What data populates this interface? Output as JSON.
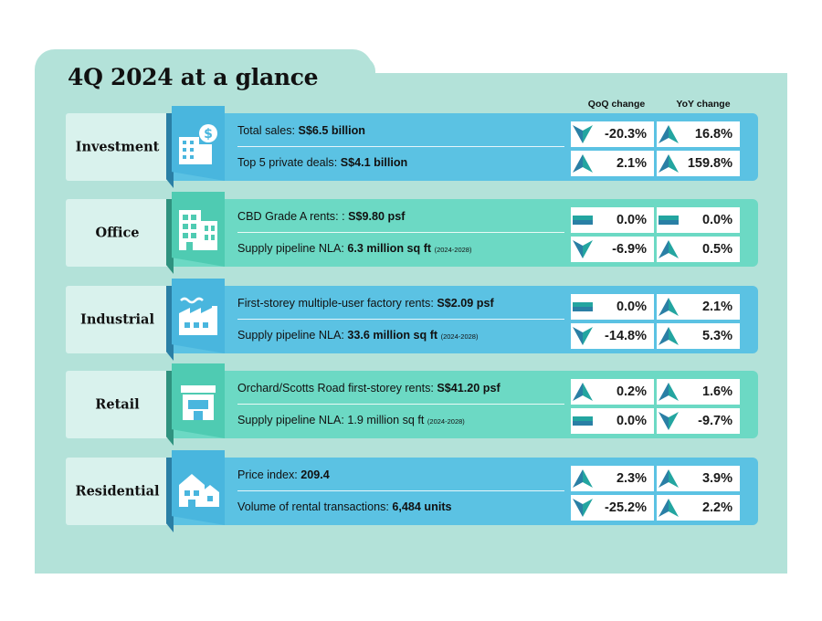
{
  "title": "4Q 2024 at a glance",
  "columns": {
    "qoq": "QoQ change",
    "yoy": "YoY change"
  },
  "colors": {
    "up": "#23a5a0",
    "down": "#23a5a0",
    "flat": "#23a5a0"
  },
  "sections": [
    {
      "label": "Investment",
      "icon": "building-dollar-icon",
      "metrics": [
        {
          "prefix": "Total sales: ",
          "value": "S$6.5 billion",
          "suffix": "",
          "qoq": "-20.3%",
          "qoq_dir": "down",
          "yoy": "16.8%",
          "yoy_dir": "up"
        },
        {
          "prefix": "Top 5 private deals: ",
          "value": "S$4.1 billion",
          "suffix": "",
          "qoq": "2.1%",
          "qoq_dir": "up",
          "yoy": "159.8%",
          "yoy_dir": "up"
        }
      ]
    },
    {
      "label": "Office",
      "icon": "office-buildings-icon",
      "metrics": [
        {
          "prefix": "CBD Grade A rents: : ",
          "value": "S$9.80 psf",
          "suffix": "",
          "qoq": "0.0%",
          "qoq_dir": "flat",
          "yoy": "0.0%",
          "yoy_dir": "flat"
        },
        {
          "prefix": "Supply pipeline NLA: ",
          "value": "6.3 million sq ft",
          "suffix": "(2024-2028)",
          "qoq": "-6.9%",
          "qoq_dir": "down",
          "yoy": "0.5%",
          "yoy_dir": "up"
        }
      ]
    },
    {
      "label": "Industrial",
      "icon": "factory-icon",
      "metrics": [
        {
          "prefix": "First-storey multiple-user factory rents: ",
          "value": "S$2.09 psf",
          "suffix": "",
          "qoq": "0.0%",
          "qoq_dir": "flat",
          "yoy": "2.1%",
          "yoy_dir": "up"
        },
        {
          "prefix": "Supply pipeline NLA: ",
          "value": "33.6 million sq ft",
          "suffix": "(2024-2028)",
          "qoq": "-14.8%",
          "qoq_dir": "down",
          "yoy": "5.3%",
          "yoy_dir": "up"
        }
      ]
    },
    {
      "label": "Retail",
      "icon": "storefront-icon",
      "metrics": [
        {
          "prefix": "Orchard/Scotts Road first-storey rents: ",
          "value": "S$41.20 psf",
          "suffix": "",
          "qoq": "0.2%",
          "qoq_dir": "up",
          "yoy": "1.6%",
          "yoy_dir": "up"
        },
        {
          "prefix": "Supply pipeline NLA: 1.9 million sq ft ",
          "value": "",
          "suffix": "(2024-2028)",
          "qoq": "0.0%",
          "qoq_dir": "flat",
          "yoy": "-9.7%",
          "yoy_dir": "down"
        }
      ]
    },
    {
      "label": "Residential",
      "icon": "houses-icon",
      "metrics": [
        {
          "prefix": "Price index: ",
          "value": "209.4",
          "suffix": "",
          "qoq": "2.3%",
          "qoq_dir": "up",
          "yoy": "3.9%",
          "yoy_dir": "up"
        },
        {
          "prefix": "Volume of rental transactions: ",
          "value": "6,484 units",
          "suffix": "",
          "qoq": "-25.2%",
          "qoq_dir": "down",
          "yoy": "2.2%",
          "yoy_dir": "up"
        }
      ]
    }
  ]
}
